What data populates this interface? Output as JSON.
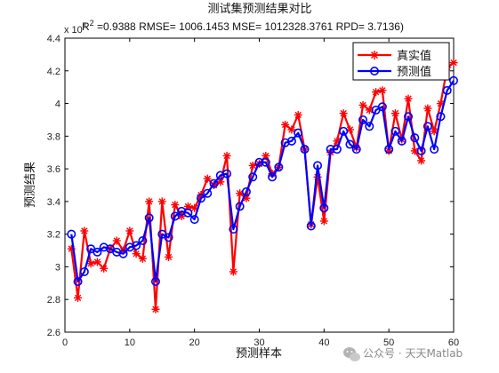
{
  "chart_data": {
    "type": "line",
    "title": "测试集预测结果对比",
    "subtitle": "R^2 =0.9388 RMSE= 1006.1453 MSE= 1012328.3761 RPD= 3.7136)",
    "subtitle_parts": {
      "prefix": "R",
      "sup": "2",
      "rest": " =0.9388 RMSE= 1006.1453 MSE= 1012328.3761 RPD= 3.7136)"
    },
    "xlabel": "预测样本",
    "ylabel": "预测结果",
    "xlim": [
      0,
      60
    ],
    "ylim": [
      2.6,
      4.4
    ],
    "exponent_label": "x 10",
    "exponent_power": "4",
    "xticks": [
      "0",
      "10",
      "20",
      "30",
      "40",
      "50",
      "60"
    ],
    "yticks": [
      "2.6",
      "2.8",
      "3",
      "3.2",
      "3.4",
      "3.6",
      "3.8",
      "4",
      "4.2",
      "4.4"
    ],
    "grid": false,
    "legend_position": "top-right",
    "x": [
      1,
      2,
      3,
      4,
      5,
      6,
      7,
      8,
      9,
      10,
      11,
      12,
      13,
      14,
      15,
      16,
      17,
      18,
      19,
      20,
      21,
      22,
      23,
      24,
      25,
      26,
      27,
      28,
      29,
      30,
      31,
      32,
      33,
      34,
      35,
      36,
      37,
      38,
      39,
      40,
      41,
      42,
      43,
      44,
      45,
      46,
      47,
      48,
      49,
      50,
      51,
      52,
      53,
      54,
      55,
      56,
      57,
      58,
      59,
      60
    ],
    "series": [
      {
        "name": "真实值",
        "color": "#ff0000",
        "marker": "star",
        "values": [
          3.11,
          2.81,
          3.22,
          3.02,
          3.03,
          2.99,
          3.11,
          3.16,
          3.1,
          3.22,
          3.08,
          3.05,
          3.4,
          2.74,
          3.4,
          3.06,
          3.38,
          3.31,
          3.37,
          3.36,
          3.44,
          3.54,
          3.5,
          3.52,
          3.68,
          2.97,
          3.45,
          3.42,
          3.62,
          3.63,
          3.68,
          3.57,
          3.61,
          3.87,
          3.84,
          3.93,
          3.72,
          3.26,
          3.55,
          3.28,
          3.7,
          3.77,
          3.94,
          3.84,
          3.73,
          3.99,
          3.96,
          4.07,
          4.08,
          3.71,
          3.94,
          3.78,
          4.03,
          3.71,
          3.65,
          3.97,
          3.83,
          4.0,
          4.22,
          4.25
        ]
      },
      {
        "name": "预测值",
        "color": "#0000ff",
        "marker": "circle",
        "values": [
          3.2,
          2.91,
          2.97,
          3.11,
          3.09,
          3.12,
          3.11,
          3.09,
          3.08,
          3.12,
          3.13,
          3.16,
          3.3,
          2.91,
          3.2,
          3.18,
          3.31,
          3.34,
          3.33,
          3.29,
          3.42,
          3.45,
          3.51,
          3.56,
          3.57,
          3.23,
          3.37,
          3.46,
          3.55,
          3.64,
          3.64,
          3.55,
          3.61,
          3.76,
          3.77,
          3.82,
          3.72,
          3.25,
          3.62,
          3.36,
          3.72,
          3.72,
          3.83,
          3.75,
          3.72,
          3.9,
          3.86,
          3.96,
          3.98,
          3.72,
          3.83,
          3.77,
          3.92,
          3.79,
          3.71,
          3.86,
          3.72,
          3.92,
          4.08,
          4.14
        ]
      }
    ]
  },
  "watermark": {
    "text": "公众号 · 天天Matlab",
    "icon": "wechat-icon"
  }
}
